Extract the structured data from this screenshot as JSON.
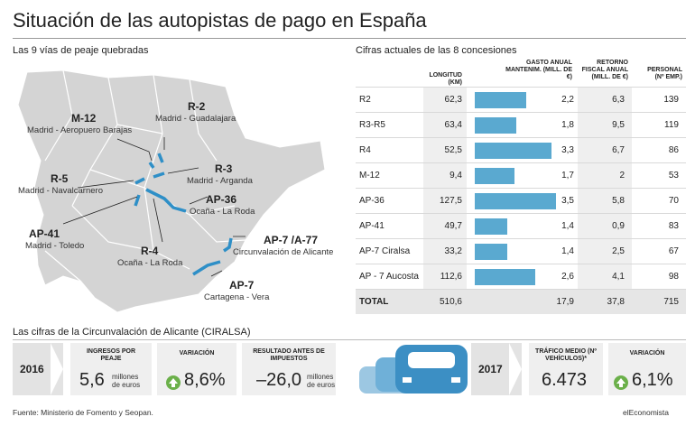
{
  "title": "Situación de las autopistas de pago en España",
  "map_subtitle": "Las 9 vías de peaje quebradas",
  "table_subtitle": "Cifras actuales de las 8 concesiones",
  "map_labels": [
    {
      "code": "R-2",
      "desc": "Madrid - Guadalajara"
    },
    {
      "code": "M-12",
      "desc": "Madrid - Aeropuero Barajas"
    },
    {
      "code": "R-3",
      "desc": "Madrid - Arganda"
    },
    {
      "code": "R-5",
      "desc": "Madrid - Navalcarnero"
    },
    {
      "code": "AP-36",
      "desc": "Ocaña - La Roda"
    },
    {
      "code": "AP-41",
      "desc": "Madrid - Toledo"
    },
    {
      "code": "R-4",
      "desc": "Ocaña - La Roda"
    },
    {
      "code": "AP-7 /A-77",
      "desc": "Circunvalación de Alicante"
    },
    {
      "code": "AP-7",
      "desc": "Cartagena - Vera"
    }
  ],
  "chart_data": {
    "type": "table",
    "columns": [
      "",
      "LONGITUD (KM)",
      "GASTO ANUAL MANTENIM. (MILL. DE €)",
      "RETORNO FISCAL ANUAL (MILL. DE €)",
      "PERSONAL (Nº EMP.)"
    ],
    "rows": [
      {
        "name": "R2",
        "longitud": "62,3",
        "gasto": "2,2",
        "gasto_val": 2.2,
        "retorno": "6,3",
        "personal": "139"
      },
      {
        "name": "R3-R5",
        "longitud": "63,4",
        "gasto": "1,8",
        "gasto_val": 1.8,
        "retorno": "9,5",
        "personal": "119"
      },
      {
        "name": "R4",
        "longitud": "52,5",
        "gasto": "3,3",
        "gasto_val": 3.3,
        "retorno": "6,7",
        "personal": "86"
      },
      {
        "name": "M-12",
        "longitud": "9,4",
        "gasto": "1,7",
        "gasto_val": 1.7,
        "retorno": "2",
        "personal": "53"
      },
      {
        "name": "AP-36",
        "longitud": "127,5",
        "gasto": "3,5",
        "gasto_val": 3.5,
        "retorno": "5,8",
        "personal": "70"
      },
      {
        "name": "AP-41",
        "longitud": "49,7",
        "gasto": "1,4",
        "gasto_val": 1.4,
        "retorno": "0,9",
        "personal": "83"
      },
      {
        "name": "AP-7 Ciralsa",
        "longitud": "33,2",
        "gasto": "1,4",
        "gasto_val": 1.4,
        "retorno": "2,5",
        "personal": "67"
      },
      {
        "name": "AP - 7 Aucosta",
        "longitud": "112,6",
        "gasto": "2,6",
        "gasto_val": 2.6,
        "retorno": "4,1",
        "personal": "98"
      }
    ],
    "total": {
      "name": "TOTAL",
      "longitud": "510,6",
      "gasto": "17,9",
      "retorno": "37,8",
      "personal": "715"
    },
    "bar_max": 3.5,
    "bar_color": "#5aa9d0"
  },
  "bottom": {
    "subtitle": "Las cifras de la Circunvalación de Alicante (CIRALSA)",
    "year1": "2016",
    "ingresos_head": "INGRESOS POR PEAJE",
    "ingresos_val": "5,6",
    "ingresos_unit1": "millones",
    "ingresos_unit2": "de euros",
    "var1_head": "VARIACIÓN",
    "var1_val": "8,6%",
    "resultado_head": "RESULTADO ANTES DE IMPUESTOS",
    "resultado_val": "–26,0",
    "resultado_unit1": "millones",
    "resultado_unit2": "de euros",
    "year2": "2017",
    "trafico_head": "TRÁFICO MEDIO (Nº VEHÍCULOS)*",
    "trafico_val": "6.473",
    "var2_head": "VARIACIÓN",
    "var2_val": "6,1%"
  },
  "footer_source": "Fuente: Ministerio de Fomento y Seopan.",
  "footer_brand": "elEconomista",
  "colors": {
    "land": "#d3d3d3",
    "road": "#2e8fc7",
    "bar": "#5aa9d0",
    "up": "#6bb04a"
  }
}
